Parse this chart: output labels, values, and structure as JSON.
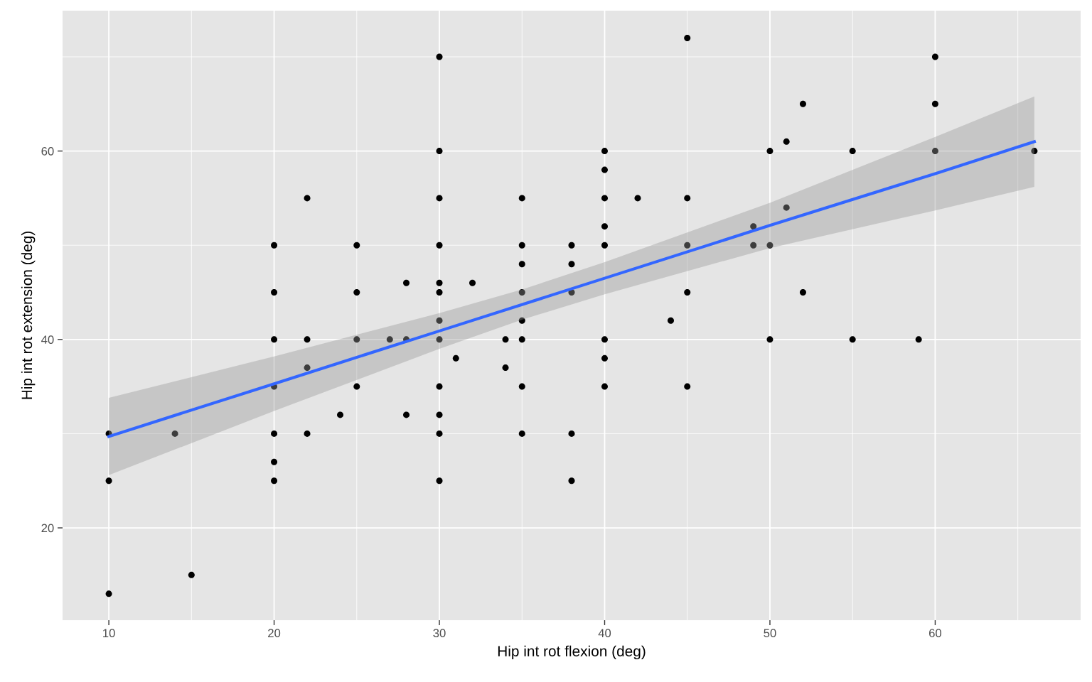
{
  "chart_data": {
    "type": "scatter",
    "xlabel": "Hip int rot flexion (deg)",
    "ylabel": "Hip int rot extension (deg)",
    "xlim": [
      7.2,
      68.8
    ],
    "ylim": [
      10.2,
      74.9
    ],
    "xticks": [
      10,
      20,
      30,
      40,
      50,
      60
    ],
    "yticks": [
      20,
      40,
      60
    ],
    "grid": true,
    "series": [
      {
        "marker": "circle",
        "color": "#000000",
        "x": [
          10,
          10,
          10,
          14,
          15,
          20,
          20,
          20,
          20,
          20,
          20,
          20,
          22,
          22,
          22,
          22,
          24,
          25,
          25,
          25,
          25,
          27,
          28,
          28,
          28,
          30,
          30,
          30,
          30,
          30,
          30,
          30,
          30,
          30,
          30,
          30,
          30,
          31,
          32,
          34,
          34,
          35,
          35,
          35,
          35,
          35,
          35,
          35,
          35,
          38,
          38,
          38,
          38,
          38,
          40,
          40,
          40,
          40,
          40,
          40,
          40,
          40,
          42,
          44,
          45,
          45,
          45,
          45,
          45,
          49,
          49,
          50,
          50,
          50,
          51,
          51,
          52,
          52,
          55,
          55,
          59,
          60,
          60,
          60,
          66
        ],
        "values": [
          30,
          25,
          13,
          30,
          15,
          50,
          45,
          40,
          35,
          30,
          27,
          25,
          55,
          40,
          37,
          30,
          32,
          50,
          45,
          40,
          35,
          40,
          46,
          40,
          32,
          70,
          60,
          55,
          50,
          46,
          45,
          42,
          40,
          35,
          32,
          30,
          25,
          38,
          46,
          40,
          37,
          55,
          50,
          48,
          45,
          42,
          40,
          35,
          30,
          50,
          48,
          45,
          30,
          25,
          60,
          58,
          55,
          52,
          50,
          40,
          38,
          35,
          55,
          42,
          72,
          55,
          50,
          45,
          35,
          52,
          50,
          60,
          50,
          40,
          61,
          54,
          65,
          45,
          60,
          40,
          40,
          70,
          65,
          60,
          60
        ]
      },
      {
        "type": "line",
        "marker": "none",
        "color": "#3366ff",
        "line_style": "solid",
        "x": [
          10,
          20,
          30,
          35,
          40,
          50,
          60,
          66
        ],
        "values": [
          29.7,
          35.3,
          40.9,
          43.7,
          46.5,
          52.1,
          57.6,
          61.0
        ],
        "lower": [
          25.6,
          32.4,
          39.0,
          42.1,
          44.8,
          49.7,
          53.7,
          56.2
        ],
        "upper": [
          33.8,
          38.2,
          42.8,
          45.3,
          48.2,
          54.5,
          61.5,
          65.8
        ]
      }
    ]
  }
}
